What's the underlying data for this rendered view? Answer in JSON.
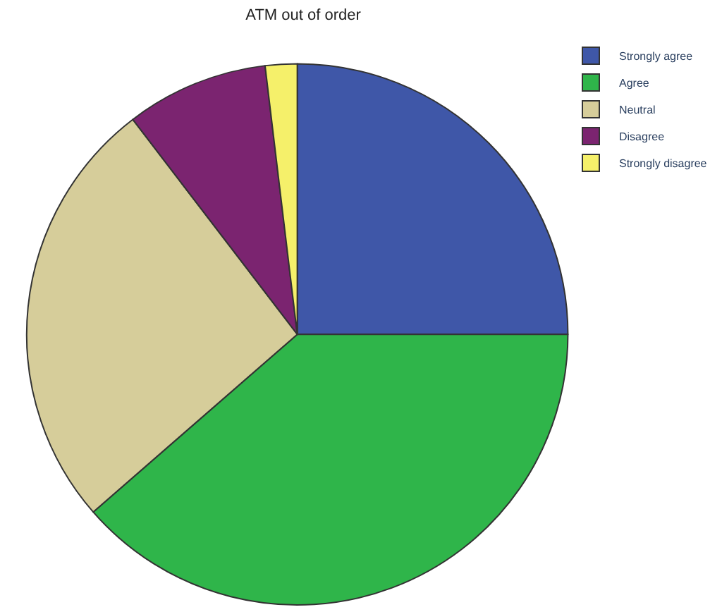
{
  "chart_data": {
    "type": "pie",
    "title": "ATM out of order",
    "categories": [
      "Strongly agree",
      "Agree",
      "Neutral",
      "Disagree",
      "Strongly disagree"
    ],
    "values": [
      25,
      38.6,
      26,
      8.5,
      1.9
    ],
    "colors": [
      "#3f57a8",
      "#2fb54a",
      "#d6cd9a",
      "#7b2470",
      "#f5f06a"
    ],
    "legend": "top right"
  }
}
